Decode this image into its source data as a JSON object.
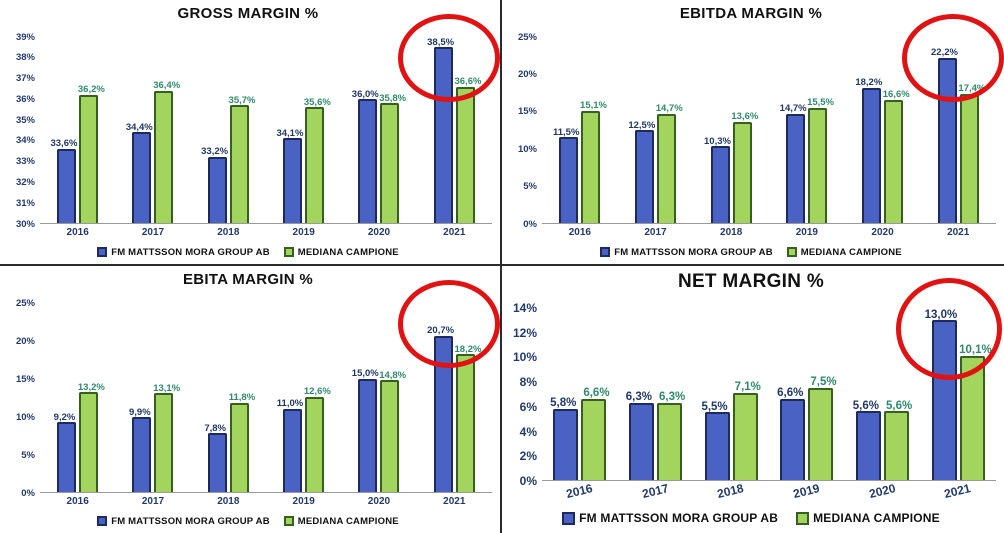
{
  "legend": {
    "series1": "FM MATTSSON MORA GROUP AB",
    "series2": "MEDIANA CAMPIONE"
  },
  "colors": {
    "series1_fill": "#4a62c4",
    "series1_border": "#1c2a5e",
    "series2_fill": "#a2d45e",
    "series2_border": "#35601f",
    "series1_label": "#1f3864",
    "series2_label": "#2e8b6a",
    "axis_text": "#223a6b",
    "highlight_circle": "#e01212"
  },
  "chart_data": [
    {
      "type": "bar",
      "title": "GROSS MARGIN %",
      "categories": [
        "2016",
        "2017",
        "2018",
        "2019",
        "2020",
        "2021"
      ],
      "series": [
        {
          "name": "FM MATTSSON MORA GROUP AB",
          "values": [
            33.6,
            34.4,
            33.2,
            34.1,
            36.0,
            38.5
          ],
          "labels": [
            "33,6%",
            "34,4%",
            "33,2%",
            "34,1%",
            "36,0%",
            "38,5%"
          ]
        },
        {
          "name": "MEDIANA CAMPIONE",
          "values": [
            36.2,
            36.4,
            35.7,
            35.6,
            35.8,
            36.6
          ],
          "labels": [
            "36,2%",
            "36,4%",
            "35,7%",
            "35,6%",
            "35,8%",
            "36,6%"
          ]
        }
      ],
      "ylim": [
        30,
        39
      ],
      "yticks": [
        30,
        31,
        32,
        33,
        34,
        35,
        36,
        37,
        38,
        39
      ],
      "ytick_labels": [
        "30%",
        "31%",
        "32%",
        "33%",
        "34%",
        "35%",
        "36%",
        "37%",
        "38%",
        "39%"
      ],
      "legend_position": "bottom",
      "grid": false,
      "highlight_year": "2021"
    },
    {
      "type": "bar",
      "title": "EBITDA MARGIN %",
      "categories": [
        "2016",
        "2017",
        "2018",
        "2019",
        "2020",
        "2021"
      ],
      "series": [
        {
          "name": "FM MATTSSON MORA GROUP AB",
          "values": [
            11.5,
            12.5,
            10.3,
            14.7,
            18.2,
            22.2
          ],
          "labels": [
            "11,5%",
            "12,5%",
            "10,3%",
            "14,7%",
            "18,2%",
            "22,2%"
          ]
        },
        {
          "name": "MEDIANA CAMPIONE",
          "values": [
            15.1,
            14.7,
            13.6,
            15.5,
            16.6,
            17.4
          ],
          "labels": [
            "15,1%",
            "14,7%",
            "13,6%",
            "15,5%",
            "16,6%",
            "17,4%"
          ]
        }
      ],
      "ylim": [
        0,
        25
      ],
      "yticks": [
        0,
        5,
        10,
        15,
        20,
        25
      ],
      "ytick_labels": [
        "0%",
        "5%",
        "10%",
        "15%",
        "20%",
        "25%"
      ],
      "legend_position": "bottom",
      "grid": false,
      "highlight_year": "2021"
    },
    {
      "type": "bar",
      "title": "EBITA MARGIN %",
      "categories": [
        "2016",
        "2017",
        "2018",
        "2019",
        "2020",
        "2021"
      ],
      "series": [
        {
          "name": "FM MATTSSON MORA GROUP AB",
          "values": [
            9.2,
            9.9,
            7.8,
            11.0,
            15.0,
            20.7
          ],
          "labels": [
            "9,2%",
            "9,9%",
            "7,8%",
            "11,0%",
            "15,0%",
            "20,7%"
          ]
        },
        {
          "name": "MEDIANA CAMPIONE",
          "values": [
            13.2,
            13.1,
            11.8,
            12.6,
            14.8,
            18.2
          ],
          "labels": [
            "13,2%",
            "13,1%",
            "11,8%",
            "12,6%",
            "14,8%",
            "18,2%"
          ]
        }
      ],
      "ylim": [
        0,
        25
      ],
      "yticks": [
        0,
        5,
        10,
        15,
        20,
        25
      ],
      "ytick_labels": [
        "0%",
        "5%",
        "10%",
        "15%",
        "20%",
        "25%"
      ],
      "legend_position": "bottom",
      "grid": false,
      "highlight_year": "2021"
    },
    {
      "type": "bar",
      "title": "NET MARGIN %",
      "categories": [
        "2016",
        "2017",
        "2018",
        "2019",
        "2020",
        "2021"
      ],
      "series": [
        {
          "name": "FM MATTSSON MORA GROUP AB",
          "values": [
            5.8,
            6.3,
            5.5,
            6.6,
            5.6,
            13.0
          ],
          "labels": [
            "5,8%",
            "6,3%",
            "5,5%",
            "6,6%",
            "5,6%",
            "13,0%"
          ]
        },
        {
          "name": "MEDIANA CAMPIONE",
          "values": [
            6.6,
            6.3,
            7.1,
            7.5,
            5.6,
            10.1
          ],
          "labels": [
            "6,6%",
            "6,3%",
            "7,1%",
            "7,5%",
            "5,6%",
            "10,1%"
          ]
        }
      ],
      "ylim": [
        0,
        14
      ],
      "yticks": [
        0,
        2,
        4,
        6,
        8,
        10,
        12,
        14
      ],
      "ytick_labels": [
        "0%",
        "2%",
        "4%",
        "6%",
        "8%",
        "10%",
        "12%",
        "14%"
      ],
      "legend_position": "bottom",
      "grid": false,
      "highlight_year": "2021"
    }
  ]
}
